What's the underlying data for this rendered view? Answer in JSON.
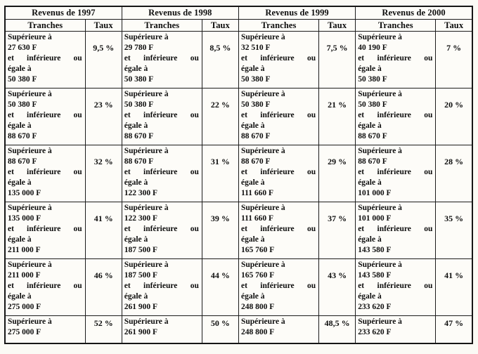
{
  "table": {
    "groups": [
      {
        "year_header": "Revenus de 1997"
      },
      {
        "year_header": "Revenus de 1998"
      },
      {
        "year_header": "Revenus de 1999"
      },
      {
        "year_header": "Revenus de 2000"
      }
    ],
    "col_headers": {
      "tranches": "Tranches",
      "taux": "Taux"
    },
    "labels": {
      "sup": "Supérieure à",
      "et_inf": "et inférieure ou",
      "egale": "égale à"
    },
    "rows": [
      {
        "cells": [
          {
            "sup": "27 630 F",
            "inf": "50 380 F",
            "taux": "9,5 %"
          },
          {
            "sup": "29 780 F",
            "inf": "50 380 F",
            "taux": "8,5 %"
          },
          {
            "sup": "32 510 F",
            "inf": "50 380 F",
            "taux": "7,5 %"
          },
          {
            "sup": "40 190 F",
            "inf": "50 380 F",
            "taux": "7 %"
          }
        ]
      },
      {
        "cells": [
          {
            "sup": "50 380 F",
            "inf": "88 670 F",
            "taux": "23 %"
          },
          {
            "sup": "50 380 F",
            "inf": "88 670 F",
            "taux": "22 %"
          },
          {
            "sup": "50 380 F",
            "inf": "88 670 F",
            "taux": "21 %"
          },
          {
            "sup": "50 380 F",
            "inf": "88 670 F",
            "taux": "20 %"
          }
        ]
      },
      {
        "cells": [
          {
            "sup": "88 670 F",
            "inf": "135 000 F",
            "taux": "32 %"
          },
          {
            "sup": "88 670 F",
            "inf": "122 300 F",
            "taux": "31 %"
          },
          {
            "sup": "88 670 F",
            "inf": "111 660 F",
            "taux": "29 %"
          },
          {
            "sup": "88 670 F",
            "inf": "101 000 F",
            "taux": "28 %"
          }
        ]
      },
      {
        "cells": [
          {
            "sup": "135 000 F",
            "inf": "211 000 F",
            "taux": "41 %"
          },
          {
            "sup": "122 300 F",
            "inf": "187 500 F",
            "taux": "39 %"
          },
          {
            "sup": "111 660 F",
            "inf": "165 760 F",
            "taux": "37 %"
          },
          {
            "sup": "101 000 F",
            "inf": "143 580 F",
            "taux": "35 %"
          }
        ]
      },
      {
        "cells": [
          {
            "sup": "211 000 F",
            "inf": "275 000 F",
            "taux": "46 %"
          },
          {
            "sup": "187 500 F",
            "inf": "261 900 F",
            "taux": "44 %"
          },
          {
            "sup": "165 760 F",
            "inf": "248 800 F",
            "taux": "43 %"
          },
          {
            "sup": "143 580 F",
            "inf": "233 620 F",
            "taux": "41 %"
          }
        ]
      },
      {
        "cells": [
          {
            "sup": "275 000 F",
            "inf": null,
            "taux": "52 %"
          },
          {
            "sup": "261 900 F",
            "inf": null,
            "taux": "50 %"
          },
          {
            "sup": "248 800 F",
            "inf": null,
            "taux": "48,5 %"
          },
          {
            "sup": "233 620 F",
            "inf": null,
            "taux": "47 %"
          }
        ]
      }
    ]
  }
}
